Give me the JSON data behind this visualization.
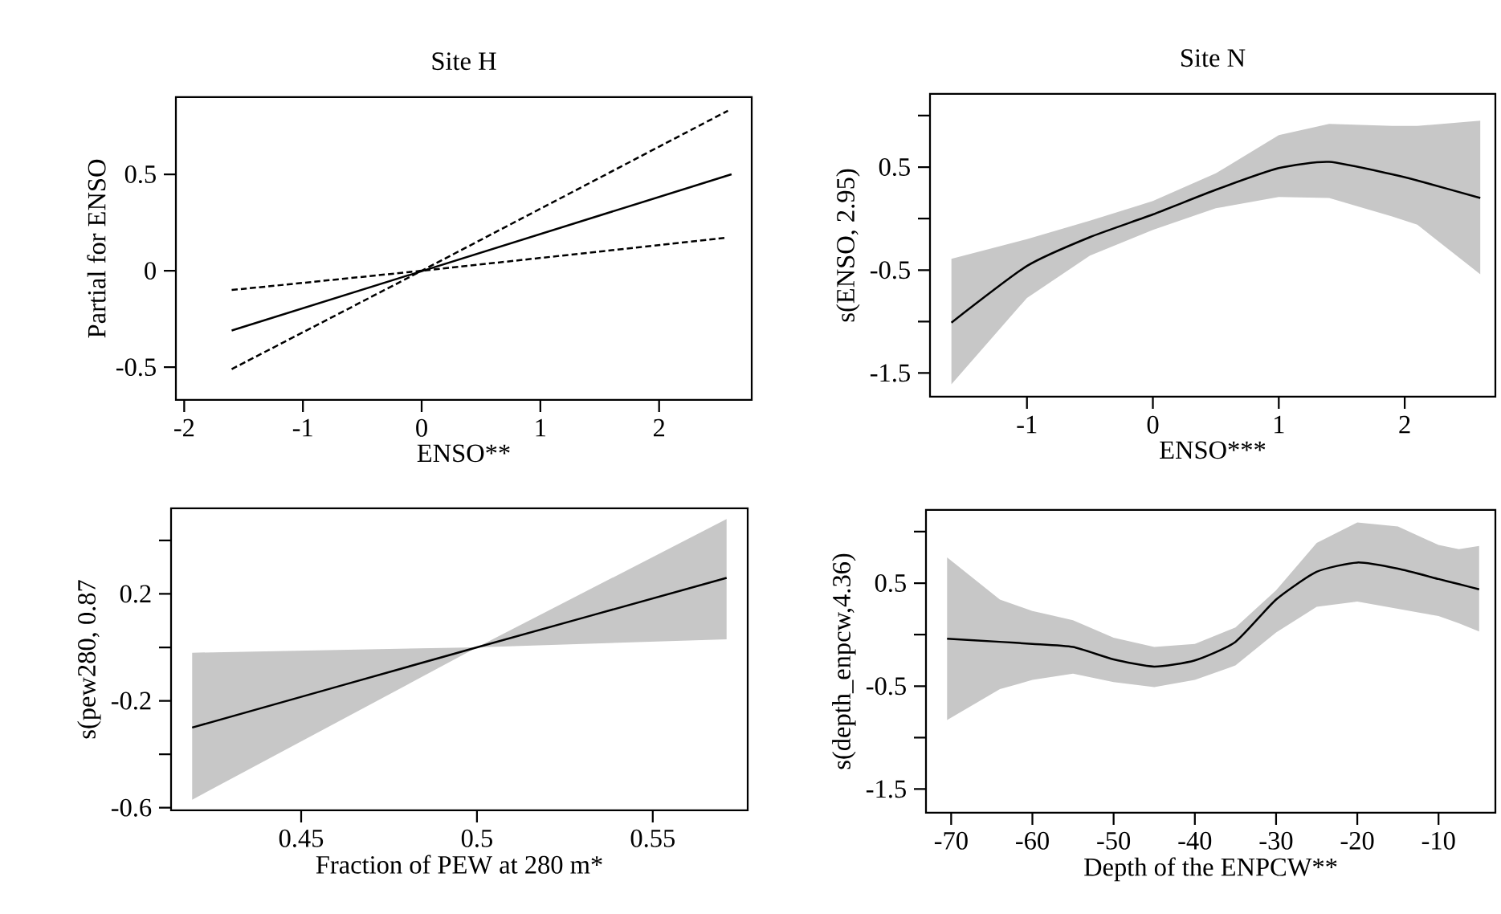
{
  "chart_data": [
    {
      "type": "line",
      "title": "Site H",
      "xlabel": "ENSO**",
      "ylabel": "Partial for ENSO",
      "xlim": [
        -2.07,
        2.78
      ],
      "ylim": [
        -0.67,
        0.9
      ],
      "xticks": [
        -2,
        -1,
        0,
        1,
        2
      ],
      "yticks": [
        -0.5,
        0,
        0.5
      ],
      "series": [
        {
          "color": "#000000",
          "line_style": "solid",
          "x": [
            -1.6,
            2.61
          ],
          "values": [
            -0.31,
            0.5
          ]
        },
        {
          "color": "#000000",
          "line_style": "dashed",
          "x": [
            -1.6,
            0,
            2.58
          ],
          "values": [
            -0.51,
            0,
            0.83
          ]
        },
        {
          "color": "#000000",
          "line_style": "dashed",
          "x": [
            -1.6,
            0,
            2.55
          ],
          "values": [
            -0.1,
            0,
            0.17
          ]
        }
      ]
    },
    {
      "type": "line",
      "title": "Site N",
      "xlabel": "ENSO***",
      "ylabel": "s(ENSO, 2.95)",
      "xlim": [
        -1.77,
        2.72
      ],
      "ylim": [
        -1.73,
        1.21
      ],
      "xticks": [
        -1,
        0,
        1,
        2
      ],
      "yticks": [
        -1.5,
        {
          "value": -1,
          "label": null
        },
        -0.5,
        {
          "value": 0,
          "label": null
        },
        0.5,
        {
          "value": 1,
          "label": null
        }
      ],
      "series": [
        {
          "color": "#000000",
          "x": [
            -1.6,
            -1,
            -0.5,
            0,
            0.5,
            1,
            1.4,
            1.9,
            2.1,
            2.6
          ],
          "values": [
            -1.01,
            -0.46,
            -0.18,
            0.04,
            0.28,
            0.49,
            0.55,
            0.43,
            0.37,
            0.2
          ],
          "lower": [
            -1.61,
            -0.77,
            -0.36,
            -0.11,
            0.1,
            0.21,
            0.2,
            0.02,
            -0.06,
            -0.54
          ],
          "upper": [
            -0.39,
            -0.2,
            -0.02,
            0.17,
            0.44,
            0.81,
            0.92,
            0.9,
            0.9,
            0.95
          ]
        }
      ]
    },
    {
      "type": "line",
      "xlabel": "Fraction of PEW at 280 m*",
      "ylabel": "s(pew280, 0.87",
      "xlim": [
        0.413,
        0.577
      ],
      "ylim": [
        -0.61,
        0.52
      ],
      "xticks": [
        0.45,
        0.5,
        0.55
      ],
      "yticks": [
        -0.6,
        {
          "value": -0.4,
          "label": null
        },
        -0.2,
        {
          "value": 0,
          "label": null
        },
        0.2,
        {
          "value": 0.4,
          "label": null
        }
      ],
      "series": [
        {
          "color": "#000000",
          "x": [
            0.419,
            0.5,
            0.571
          ],
          "values": [
            -0.3,
            0,
            0.26
          ],
          "lower": [
            -0.57,
            0,
            0.03
          ],
          "upper": [
            -0.02,
            0,
            0.48
          ]
        }
      ]
    },
    {
      "type": "line",
      "xlabel": "Depth of the ENPCW**",
      "ylabel": "s(depth_enpcw,4.36)",
      "xlim": [
        -73.1,
        -3
      ],
      "ylim": [
        -1.73,
        1.21
      ],
      "xticks": [
        -70,
        -60,
        -50,
        -40,
        -30,
        -20,
        -10
      ],
      "yticks": [
        -1.5,
        {
          "value": -1,
          "label": null
        },
        -0.5,
        {
          "value": 0,
          "label": null
        },
        0.5,
        {
          "value": 1,
          "label": null
        }
      ],
      "series": [
        {
          "color": "#000000",
          "x": [
            -70.5,
            -64,
            -60,
            -55,
            -50,
            -45,
            -40,
            -35,
            -30,
            -25,
            -20,
            -15,
            -10,
            -7.5,
            -5
          ],
          "values": [
            -0.04,
            -0.07,
            -0.09,
            -0.12,
            -0.24,
            -0.31,
            -0.25,
            -0.07,
            0.34,
            0.61,
            0.7,
            0.64,
            0.54,
            0.49,
            0.44
          ],
          "lower": [
            -0.83,
            -0.53,
            -0.44,
            -0.38,
            -0.46,
            -0.51,
            -0.44,
            -0.3,
            0.02,
            0.27,
            0.32,
            0.25,
            0.18,
            0.11,
            0.03
          ],
          "upper": [
            0.75,
            0.34,
            0.23,
            0.14,
            -0.03,
            -0.12,
            -0.09,
            0.07,
            0.43,
            0.89,
            1.09,
            1.05,
            0.87,
            0.83,
            0.86
          ]
        }
      ]
    }
  ]
}
